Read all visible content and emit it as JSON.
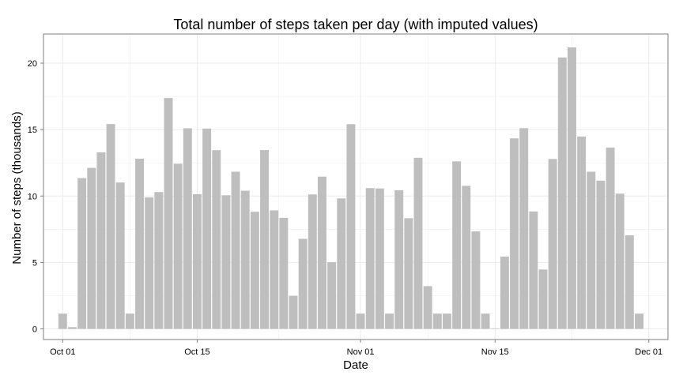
{
  "chart_data": {
    "type": "bar",
    "title": "Total number of steps taken per day (with imputed values)",
    "xlabel": "Date",
    "ylabel": "Number of steps (thousands)",
    "x_tick_labels": [
      "Oct 01",
      "Oct 15",
      "Nov 01",
      "Nov 15",
      "Dec 01"
    ],
    "x_tick_dates": [
      "2012-10-01",
      "2012-10-15",
      "2012-11-01",
      "2012-11-15",
      "2012-12-01"
    ],
    "y_tick_labels": [
      "0",
      "5",
      "10",
      "15",
      "20"
    ],
    "y_ticks": [
      0,
      5,
      10,
      15,
      20
    ],
    "ylim": [
      -0.8,
      22.2
    ],
    "xlim": [
      "2012-09-29",
      "2012-12-03"
    ],
    "grid": true,
    "bar_color": "#bebebe",
    "categories": [
      "2012-10-01",
      "2012-10-02",
      "2012-10-03",
      "2012-10-04",
      "2012-10-05",
      "2012-10-06",
      "2012-10-07",
      "2012-10-08",
      "2012-10-09",
      "2012-10-10",
      "2012-10-11",
      "2012-10-12",
      "2012-10-13",
      "2012-10-14",
      "2012-10-15",
      "2012-10-16",
      "2012-10-17",
      "2012-10-18",
      "2012-10-19",
      "2012-10-20",
      "2012-10-21",
      "2012-10-22",
      "2012-10-23",
      "2012-10-24",
      "2012-10-25",
      "2012-10-26",
      "2012-10-27",
      "2012-10-28",
      "2012-10-29",
      "2012-10-30",
      "2012-10-31",
      "2012-11-01",
      "2012-11-02",
      "2012-11-03",
      "2012-11-04",
      "2012-11-05",
      "2012-11-06",
      "2012-11-07",
      "2012-11-08",
      "2012-11-09",
      "2012-11-10",
      "2012-11-11",
      "2012-11-12",
      "2012-11-13",
      "2012-11-14",
      "2012-11-15",
      "2012-11-16",
      "2012-11-17",
      "2012-11-18",
      "2012-11-19",
      "2012-11-20",
      "2012-11-21",
      "2012-11-22",
      "2012-11-23",
      "2012-11-24",
      "2012-11-25",
      "2012-11-26",
      "2012-11-27",
      "2012-11-28",
      "2012-11-29",
      "2012-11-30"
    ],
    "values": [
      1.15,
      0.13,
      11.35,
      12.12,
      13.29,
      15.42,
      11.02,
      1.15,
      12.81,
      9.9,
      10.3,
      17.38,
      12.43,
      15.1,
      10.14,
      15.08,
      13.45,
      10.06,
      11.83,
      10.4,
      8.82,
      13.46,
      8.92,
      8.36,
      2.49,
      6.78,
      10.12,
      11.46,
      5.02,
      9.82,
      15.41,
      1.15,
      10.6,
      10.57,
      1.15,
      10.44,
      8.33,
      12.88,
      3.22,
      1.15,
      1.15,
      12.61,
      10.77,
      7.34,
      1.15,
      0.04,
      5.44,
      14.34,
      15.11,
      8.84,
      4.47,
      12.79,
      20.43,
      21.19,
      14.48,
      11.83,
      11.16,
      13.65,
      10.18,
      7.05,
      1.15
    ]
  }
}
